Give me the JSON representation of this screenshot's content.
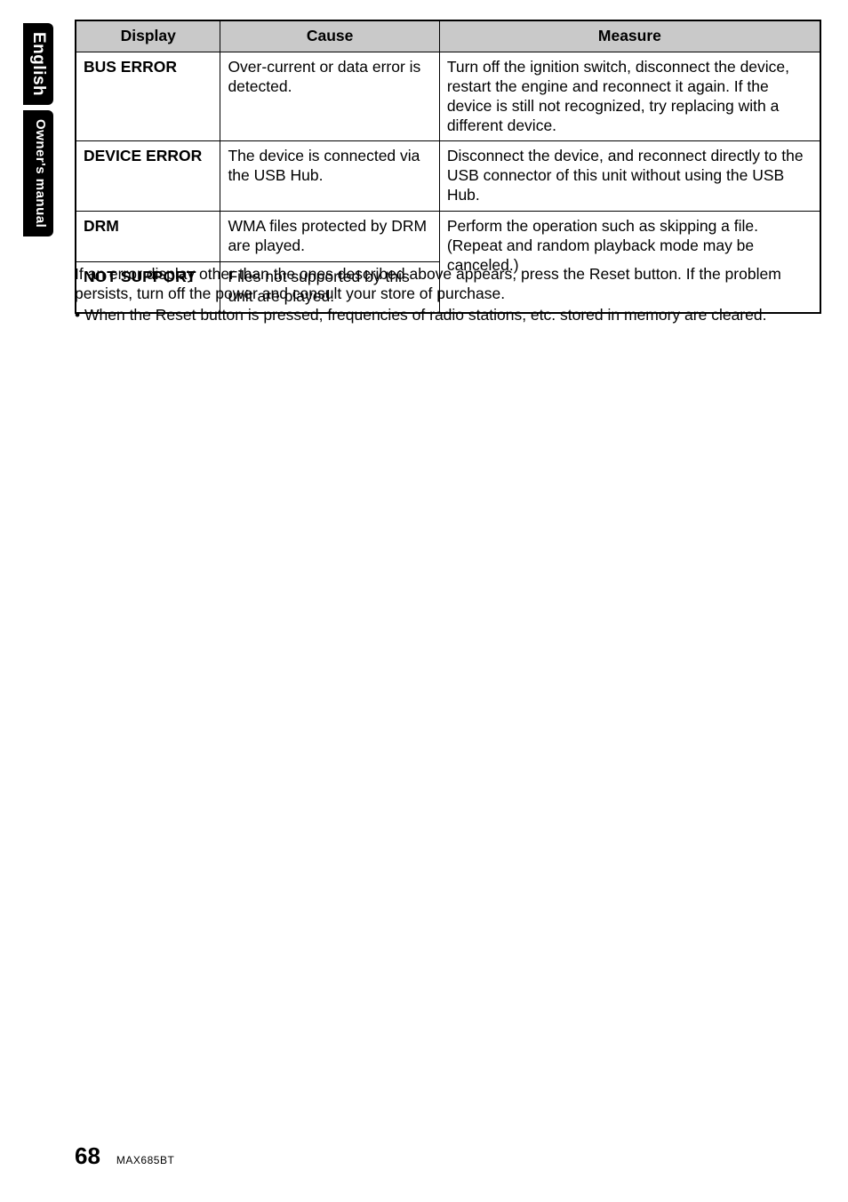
{
  "side_tabs": {
    "lang": "English",
    "section": "Owner's manual"
  },
  "table": {
    "headers": {
      "display": "Display",
      "cause": "Cause",
      "measure": "Measure"
    },
    "header_bg": "#c9c9c9",
    "rows": [
      {
        "display": "BUS ERROR",
        "cause": "Over-current or data error is detected.",
        "measure": "Turn off the ignition switch, disconnect the device, restart the engine and reconnect it again. If the device is still not recognized, try replacing with a different device."
      },
      {
        "display": "DEVICE ERROR",
        "cause": "The device is connected via the USB Hub.",
        "measure": "Disconnect the device, and reconnect directly to the USB connector of this unit without using the USB Hub."
      },
      {
        "display": "DRM",
        "cause": "WMA files protected by DRM are played.",
        "measure": "Perform the operation such as skipping a file. (Repeat and random playback mode may be canceled.)"
      },
      {
        "display": "NOT SUPPORT",
        "cause": "Files not supported by this unit are played."
      }
    ]
  },
  "notes": {
    "line1": "If an error display other than the ones described above appears, press the Reset button. If the problem persists, turn off the power and consult your store of purchase.",
    "line2": "•  When the Reset button is pressed, frequencies of radio stations, etc. stored in memory are cleared."
  },
  "footer": {
    "page": "68",
    "model": "MAX685BT"
  }
}
